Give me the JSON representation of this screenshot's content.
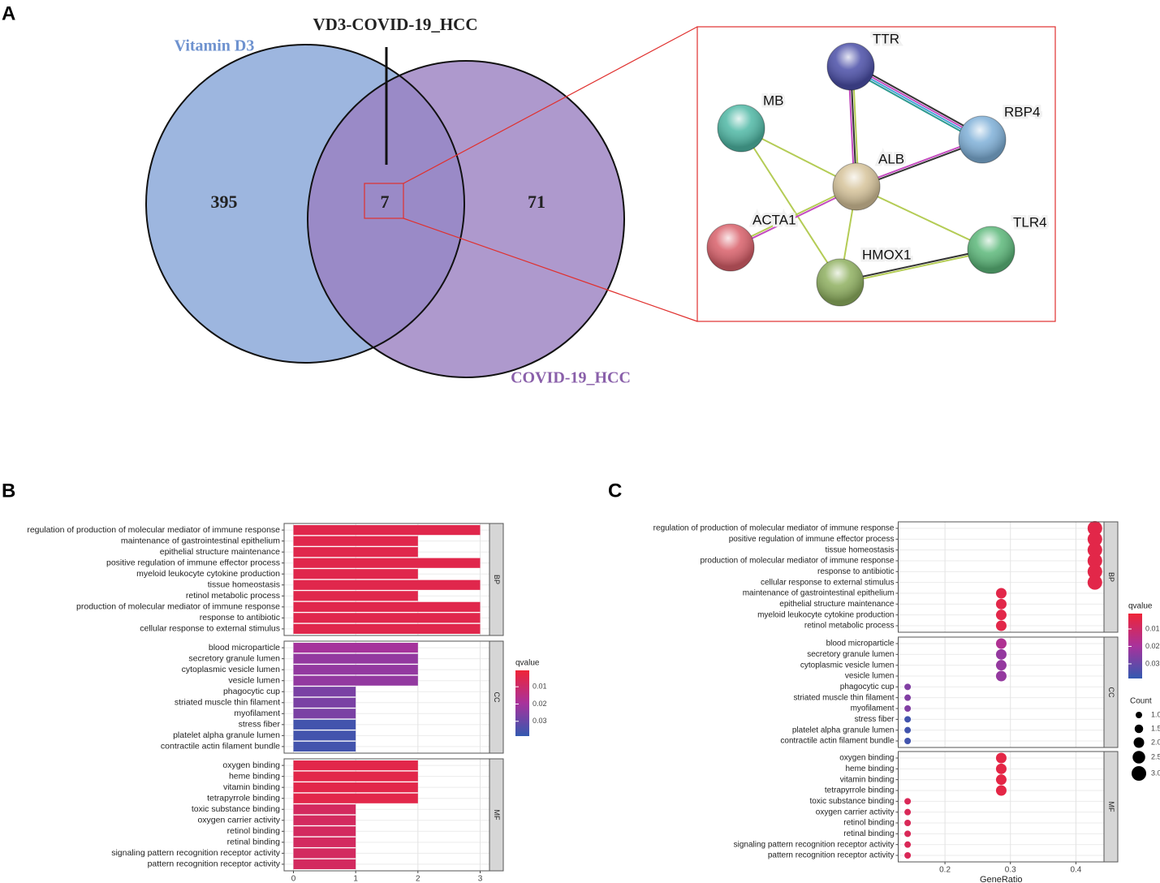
{
  "chart_data": [
    {
      "type": "venn",
      "panel_label": "A",
      "title": "VD3-COVID-19_HCC",
      "sets": [
        {
          "name": "Vitamin D3",
          "value": 395,
          "color": "#9db6df",
          "label_color": "#6e92cf"
        },
        {
          "name": "COVID-19_HCC",
          "value": 71,
          "color": "#9a7fc0",
          "label_color": "#8a60aa"
        }
      ],
      "intersection": 7
    },
    {
      "type": "network",
      "nodes": [
        {
          "label": "TTR",
          "color": "#4b4fa8"
        },
        {
          "label": "MB",
          "color": "#4fb8a5"
        },
        {
          "label": "RBP4",
          "color": "#7fb0d8"
        },
        {
          "label": "ALB",
          "color": "#d6c39a"
        },
        {
          "label": "ACTA1",
          "color": "#d9606a"
        },
        {
          "label": "HMOX1",
          "color": "#8fb060"
        },
        {
          "label": "TLR4",
          "color": "#5cb87a"
        }
      ],
      "edges": [
        {
          "source": 0,
          "target": 2,
          "colors": [
            "#333333",
            "#c44cc0",
            "#48a6d8",
            "#2e9a8f"
          ]
        },
        {
          "source": 0,
          "target": 3,
          "colors": [
            "#b4cc55",
            "#333333",
            "#c44cc0"
          ]
        },
        {
          "source": 2,
          "target": 3,
          "colors": [
            "#333333",
            "#c44cc0"
          ]
        },
        {
          "source": 1,
          "target": 3,
          "colors": [
            "#b4cc55"
          ]
        },
        {
          "source": 1,
          "target": 5,
          "colors": [
            "#b4cc55"
          ]
        },
        {
          "source": 3,
          "target": 4,
          "colors": [
            "#c44cc0",
            "#b4cc55"
          ]
        },
        {
          "source": 3,
          "target": 5,
          "colors": [
            "#b4cc55"
          ]
        },
        {
          "source": 3,
          "target": 6,
          "colors": [
            "#b4cc55"
          ]
        },
        {
          "source": 5,
          "target": 6,
          "colors": [
            "#333333",
            "#b4cc55"
          ]
        }
      ]
    },
    {
      "type": "bar",
      "panel_label": "B",
      "orientation": "horizontal",
      "xlim": [
        -0.15,
        3.15
      ],
      "xticks": [
        0,
        1,
        2,
        3
      ],
      "grid": true,
      "facets": [
        {
          "name": "BP",
          "categories": [
            "regulation of production of molecular mediator of immune response",
            "maintenance of gastrointestinal epithelium",
            "epithelial structure maintenance",
            "positive regulation of immune effector process",
            "myeloid leukocyte cytokine production",
            "tissue homeostasis",
            "retinol metabolic process",
            "production of molecular mediator of immune response",
            "response to antibiotic",
            "cellular response to external stimulus"
          ],
          "values": [
            3,
            2,
            2,
            3,
            2,
            3,
            2,
            3,
            3,
            3
          ],
          "qvalues": [
            0.0045,
            0.0045,
            0.0045,
            0.0045,
            0.0045,
            0.0045,
            0.0045,
            0.0045,
            0.0045,
            0.0045
          ]
        },
        {
          "name": "CC",
          "categories": [
            "blood microparticle",
            "secretory granule lumen",
            "cytoplasmic vesicle lumen",
            "vesicle lumen",
            "phagocytic cup",
            "striated muscle thin filament",
            "myofilament",
            "stress fiber",
            "platelet alpha granule lumen",
            "contractile actin filament bundle"
          ],
          "values": [
            2,
            2,
            2,
            2,
            1,
            1,
            1,
            1,
            1,
            1
          ],
          "qvalues": [
            0.02,
            0.023,
            0.023,
            0.023,
            0.027,
            0.027,
            0.027,
            0.036,
            0.036,
            0.036
          ]
        },
        {
          "name": "MF",
          "categories": [
            "oxygen binding",
            "heme binding",
            "vitamin binding",
            "tetrapyrrole binding",
            "toxic substance binding",
            "oxygen carrier activity",
            "retinol binding",
            "retinal binding",
            "signaling pattern recognition receptor activity",
            "pattern recognition receptor activity"
          ],
          "values": [
            2,
            2,
            2,
            2,
            1,
            1,
            1,
            1,
            1,
            1
          ],
          "qvalues": [
            0.004,
            0.004,
            0.004,
            0.004,
            0.008,
            0.008,
            0.008,
            0.008,
            0.008,
            0.008
          ]
        }
      ],
      "color_scale": {
        "title": "qvalue",
        "colors": [
          "#ef2437",
          "#a8329c",
          "#3359b0"
        ],
        "clim": [
          0.0005,
          0.0386
        ],
        "ticks": [
          0.01,
          0.02,
          0.03
        ]
      }
    },
    {
      "type": "dot",
      "panel_label": "C",
      "xlabel": "GeneRatio",
      "xlim": [
        0.1286,
        0.4429
      ],
      "xticks": [
        0.2,
        0.3,
        0.4
      ],
      "grid": true,
      "facets": [
        {
          "name": "BP",
          "categories": [
            "regulation of production of molecular mediator of immune response",
            "positive regulation of immune effector process",
            "tissue homeostasis",
            "production of molecular mediator of immune response",
            "response to antibiotic",
            "cellular response to external stimulus",
            "maintenance of gastrointestinal epithelium",
            "epithelial structure maintenance",
            "myeloid leukocyte cytokine production",
            "retinol metabolic process"
          ],
          "values": [
            0.429,
            0.429,
            0.429,
            0.429,
            0.429,
            0.429,
            0.286,
            0.286,
            0.286,
            0.286
          ],
          "counts": [
            3,
            3,
            3,
            3,
            3,
            3,
            2,
            2,
            2,
            2
          ],
          "qvalues": [
            0.0045,
            0.0045,
            0.0045,
            0.0045,
            0.0045,
            0.0045,
            0.0045,
            0.0045,
            0.0045,
            0.0045
          ]
        },
        {
          "name": "CC",
          "categories": [
            "blood microparticle",
            "secretory granule lumen",
            "cytoplasmic vesicle lumen",
            "vesicle lumen",
            "phagocytic cup",
            "striated muscle thin filament",
            "myofilament",
            "stress fiber",
            "platelet alpha granule lumen",
            "contractile actin filament bundle"
          ],
          "values": [
            0.286,
            0.286,
            0.286,
            0.286,
            0.143,
            0.143,
            0.143,
            0.143,
            0.143,
            0.143
          ],
          "counts": [
            2,
            2,
            2,
            2,
            1,
            1,
            1,
            1,
            1,
            1
          ],
          "qvalues": [
            0.018,
            0.023,
            0.023,
            0.023,
            0.026,
            0.026,
            0.026,
            0.036,
            0.036,
            0.036
          ]
        },
        {
          "name": "MF",
          "categories": [
            "oxygen binding",
            "heme binding",
            "vitamin binding",
            "tetrapyrrole binding",
            "toxic substance binding",
            "oxygen carrier activity",
            "retinol binding",
            "retinal binding",
            "signaling pattern recognition receptor activity",
            "pattern recognition receptor activity"
          ],
          "values": [
            0.286,
            0.286,
            0.286,
            0.286,
            0.143,
            0.143,
            0.143,
            0.143,
            0.143,
            0.143
          ],
          "counts": [
            2,
            2,
            2,
            2,
            1,
            1,
            1,
            1,
            1,
            1
          ],
          "qvalues": [
            0.004,
            0.004,
            0.004,
            0.004,
            0.007,
            0.007,
            0.007,
            0.007,
            0.007,
            0.007
          ]
        }
      ],
      "color_scale": {
        "title": "qvalue",
        "colors": [
          "#ef2437",
          "#a8329c",
          "#3359b0"
        ],
        "clim": [
          0.00116,
          0.0384
        ],
        "ticks": [
          0.01,
          0.02,
          0.03
        ]
      },
      "size_legend": {
        "title": "Count",
        "values": [
          {
            "value": 1,
            "label": "1.0"
          },
          {
            "value": 1.5,
            "label": "1.5"
          },
          {
            "value": 2,
            "label": "2.0"
          },
          {
            "value": 2.5,
            "label": "2.5"
          },
          {
            "value": 3,
            "label": "3.0"
          }
        ]
      }
    }
  ]
}
